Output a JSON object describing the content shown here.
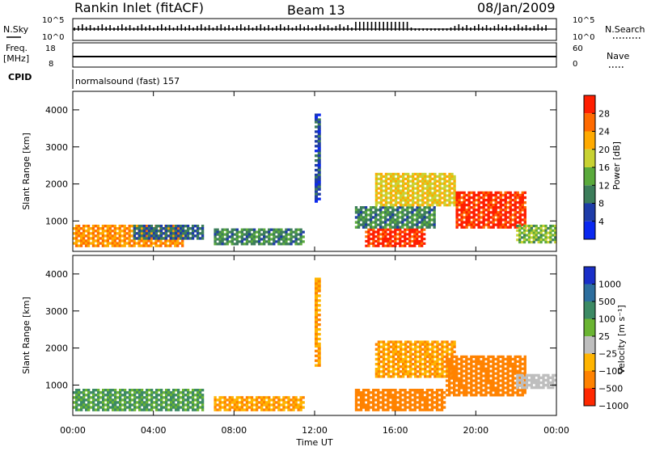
{
  "header": {
    "station": "Rankin Inlet (fitACF)",
    "beam": "Beam 13",
    "date": "08/Jan/2009"
  },
  "nsky_panel": {
    "left_label": "N.Sky",
    "right_label": "N.Search",
    "left_ticks": [
      "10^5",
      "10^0"
    ],
    "right_ticks": [
      "10^5",
      "10^0"
    ]
  },
  "freq_panel": {
    "left_label_1": "Freq.",
    "left_label_2": "[MHz]",
    "left_ticks": [
      "18",
      "8"
    ],
    "right_ticks": [
      "60",
      "0"
    ],
    "right_label": "Nave",
    "cpid_label": "CPID"
  },
  "program": {
    "name": "normalsound (fast) 157"
  },
  "x_axis": {
    "label": "Time UT",
    "ticks": [
      "00:00",
      "04:00",
      "08:00",
      "12:00",
      "16:00",
      "20:00",
      "00:00"
    ]
  },
  "colors": {
    "power_scale": [
      "#0a28f0",
      "#1e3ca8",
      "#3c7d5a",
      "#5aaa3c",
      "#c8d232",
      "#ffaa00",
      "#ff6a00",
      "#ff1e00"
    ],
    "velocity_scale": [
      "#1a2fc8",
      "#2d6e9e",
      "#3c8a64",
      "#6ab432",
      "#bebebe",
      "#ffb400",
      "#ff8200",
      "#ff2800"
    ]
  },
  "chart_data": [
    {
      "type": "heatmap",
      "name": "power",
      "ylabel": "Slant Range [km]",
      "xlabel": "Time UT",
      "xlim_hours": [
        0,
        24
      ],
      "ylim": [
        180,
        4500
      ],
      "yticks": [
        "1000",
        "2000",
        "3000",
        "4000"
      ],
      "colorbar": {
        "label": "Power [dB]",
        "ticks": [
          "4",
          "8",
          "12",
          "16",
          "20",
          "24",
          "28"
        ],
        "range": [
          0,
          30
        ]
      },
      "regions": [
        {
          "t0": 0.0,
          "t1": 5.5,
          "r0": 300,
          "r1": 900,
          "value": 22
        },
        {
          "t0": 3.0,
          "t1": 6.5,
          "r0": 500,
          "r1": 900,
          "value": 8
        },
        {
          "t0": 7.0,
          "t1": 11.5,
          "r0": 350,
          "r1": 800,
          "value": 10
        },
        {
          "t0": 14.5,
          "t1": 17.5,
          "r0": 300,
          "r1": 800,
          "value": 28
        },
        {
          "t0": 14.0,
          "t1": 18.0,
          "r0": 800,
          "r1": 1400,
          "value": 10
        },
        {
          "t0": 15.0,
          "t1": 19.0,
          "r0": 1400,
          "r1": 2300,
          "value": 18
        },
        {
          "t0": 19.0,
          "t1": 22.5,
          "r0": 800,
          "r1": 1800,
          "value": 28
        },
        {
          "t0": 22.0,
          "t1": 24.0,
          "r0": 400,
          "r1": 900,
          "value": 14
        },
        {
          "t0": 12.0,
          "t1": 12.3,
          "r0": 1500,
          "r1": 3900,
          "value": 6
        }
      ]
    },
    {
      "type": "heatmap",
      "name": "velocity",
      "ylabel": "Slant Range [km]",
      "xlabel": "Time UT",
      "xlim_hours": [
        0,
        24
      ],
      "ylim": [
        180,
        4500
      ],
      "yticks": [
        "1000",
        "2000",
        "3000",
        "4000"
      ],
      "colorbar": {
        "label": "Velocity [m s⁻¹]",
        "ticks": [
          "1000",
          "500",
          "100",
          "25",
          "−25",
          "−100",
          "−500",
          "−1000"
        ]
      },
      "regions": [
        {
          "t0": 0.0,
          "t1": 6.5,
          "r0": 300,
          "r1": 900,
          "value": 100
        },
        {
          "t0": 7.0,
          "t1": 11.5,
          "r0": 300,
          "r1": 700,
          "value": -100
        },
        {
          "t0": 14.0,
          "t1": 18.5,
          "r0": 300,
          "r1": 900,
          "value": -300
        },
        {
          "t0": 15.0,
          "t1": 19.0,
          "r0": 1200,
          "r1": 2200,
          "value": -100
        },
        {
          "t0": 18.5,
          "t1": 22.5,
          "r0": 700,
          "r1": 1800,
          "value": -300
        },
        {
          "t0": 22.0,
          "t1": 24.0,
          "r0": 900,
          "r1": 1300,
          "value": 0
        },
        {
          "t0": 12.0,
          "t1": 12.3,
          "r0": 1500,
          "r1": 3900,
          "value": -100
        }
      ]
    }
  ]
}
